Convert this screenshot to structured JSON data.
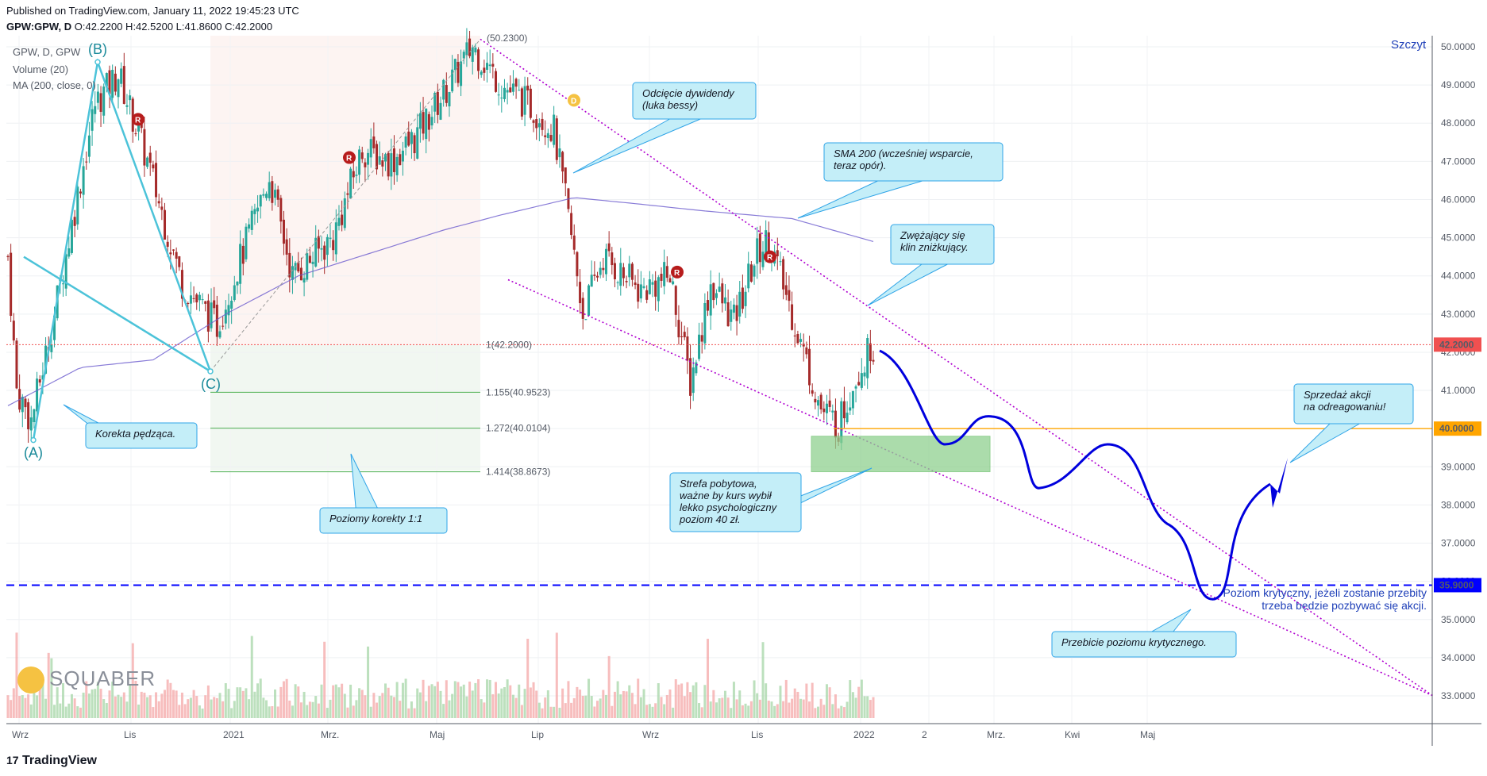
{
  "header": {
    "published": "Published on TradingView.com, January 11, 2022 19:45:23 UTC",
    "symbol": "GPW:GPW, D",
    "ohlc": "O:42.2200 H:42.5200 L:41.8600 C:42.2000"
  },
  "legend": {
    "title": "GPW, D, GPW",
    "volume": "Volume (20)",
    "ma": "MA (200, close, 0)"
  },
  "branding": {
    "tradingview": "TradingView",
    "squaber": "SQUABER"
  },
  "colors": {
    "up": "#26a69a",
    "down": "#a52a2a",
    "sma": "#6a5acd",
    "trend": "#b000d0",
    "projection": "#0000dd",
    "critical": "#0000ff",
    "resistance": "#ffa500",
    "fib": "#4caf50",
    "abc": "#4cc3d9",
    "callout_fill": "#c4eef8",
    "callout_stroke": "#2fa4e7"
  },
  "chart_data": {
    "type": "candlestick",
    "x_axis_labels": [
      "Wrz",
      "Lis",
      "2021",
      "Mrz.",
      "Maj",
      "Lip",
      "Wrz",
      "Lis",
      "2022",
      "2",
      "Mrz.",
      "Kwi",
      "Maj"
    ],
    "y_axis_labels": [
      "50.0000",
      "49.0000",
      "48.0000",
      "47.0000",
      "46.0000",
      "45.0000",
      "44.0000",
      "43.0000",
      "42.0000",
      "41.0000",
      "40.0000",
      "39.0000",
      "38.0000",
      "37.0000",
      "36.0000",
      "35.0000",
      "34.0000",
      "33.0000"
    ],
    "ylim": [
      32.5,
      50.3
    ],
    "last_price": {
      "label": "42.2000",
      "value": 42.2
    },
    "resistance": {
      "label": "40.0000",
      "value": 40.0
    },
    "critical": {
      "label": "35.9000",
      "value": 35.9
    },
    "peak_label": "Szczyt",
    "peak_value": "(50.2300)",
    "fib_levels": [
      {
        "label": "1(42.2000)",
        "value": 42.2
      },
      {
        "label": "1.155(40.9523)",
        "value": 40.9523
      },
      {
        "label": "1.272(40.0104)",
        "value": 40.0104
      },
      {
        "label": "1.414(38.8673)",
        "value": 38.8673
      }
    ],
    "waves": [
      {
        "label": "(A)",
        "value": 39.7
      },
      {
        "label": "(B)",
        "value": 49.6
      },
      {
        "label": "(C)",
        "value": 41.5
      }
    ],
    "markers": [
      {
        "label": "R",
        "value": 48.1
      },
      {
        "label": "R",
        "value": 47.1
      },
      {
        "label": "R",
        "value": 44.1
      },
      {
        "label": "R",
        "value": 44.5
      },
      {
        "label": "D",
        "value": 48.6
      }
    ],
    "series_price_anchors": [
      [
        0,
        44.5
      ],
      [
        3,
        41.0
      ],
      [
        8,
        40.2
      ],
      [
        16,
        43.0
      ],
      [
        30,
        48.5
      ],
      [
        38,
        49.3
      ],
      [
        48,
        47.0
      ],
      [
        60,
        43.8
      ],
      [
        72,
        42.7
      ],
      [
        90,
        46.6
      ],
      [
        98,
        44.0
      ],
      [
        112,
        45.0
      ],
      [
        122,
        47.3
      ],
      [
        132,
        47.0
      ],
      [
        140,
        47.6
      ],
      [
        152,
        49.0
      ],
      [
        160,
        50.0
      ],
      [
        170,
        49.0
      ],
      [
        182,
        48.3
      ],
      [
        188,
        47.8
      ],
      [
        192,
        46.0
      ],
      [
        198,
        43.0
      ],
      [
        205,
        44.5
      ],
      [
        218,
        43.6
      ],
      [
        228,
        44.0
      ],
      [
        235,
        41.2
      ],
      [
        242,
        43.8
      ],
      [
        250,
        42.8
      ],
      [
        258,
        44.6
      ],
      [
        262,
        45.0
      ],
      [
        270,
        43.0
      ],
      [
        280,
        40.5
      ],
      [
        286,
        40.1
      ],
      [
        292,
        41.4
      ],
      [
        298,
        42.2
      ]
    ],
    "sma_anchors": [
      [
        0,
        40.6
      ],
      [
        25,
        41.6
      ],
      [
        50,
        41.8
      ],
      [
        75,
        43.0
      ],
      [
        100,
        44.0
      ],
      [
        125,
        44.6
      ],
      [
        150,
        45.2
      ],
      [
        170,
        45.6
      ],
      [
        195,
        46.05
      ],
      [
        215,
        45.9
      ],
      [
        240,
        45.7
      ],
      [
        270,
        45.5
      ],
      [
        298,
        44.9
      ]
    ]
  },
  "annotations": {
    "dividend": "Odcięcie dywidendy\n(luka bessy)",
    "sma": "SMA 200 (wcześniej wsparcie,\nteraz opór).",
    "wedge": "Zwężający się\nklin zniżkujący.",
    "sell": "Sprzedaż akcji\nna odreagowaniu!",
    "zone": "Strefa pobytowa,\nważne by kurs wybił\nlekko psychologiczny\npoziom 40 zł.",
    "correction": "Korekta pędząca.",
    "fib": "Poziomy korekty 1:1",
    "breakout": "Przebicie poziomu krytycznego.",
    "critical_note": "Poziom krytyczny, jeżeli zostanie przebity\ntrzeba będzie pozbywać się akcji."
  }
}
